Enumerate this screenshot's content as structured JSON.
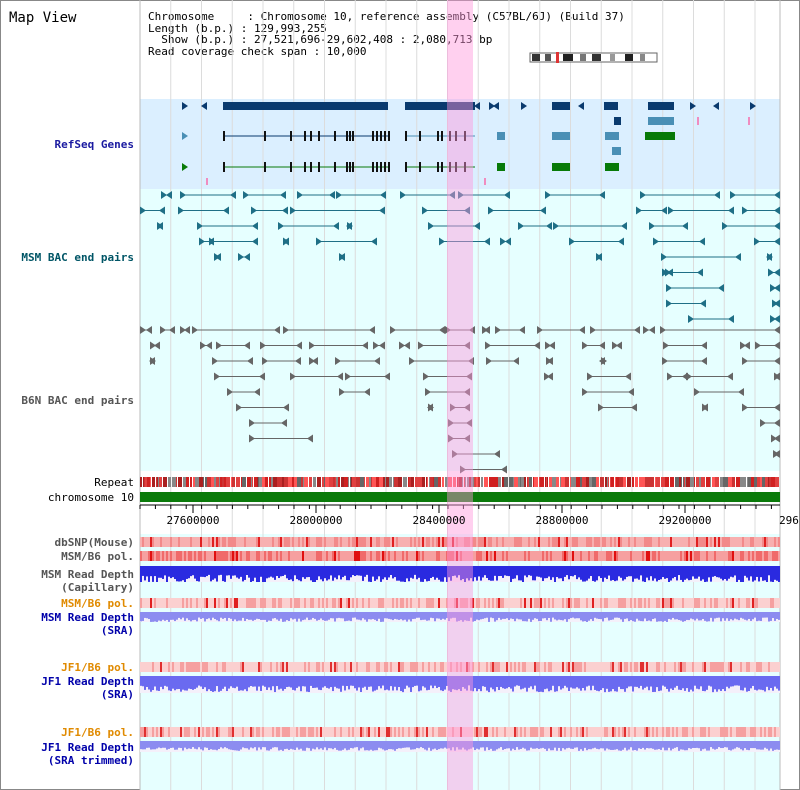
{
  "header": {
    "title": "Map View",
    "line1": "Chromosome     : Chromosome 10, reference assembly (C57BL/6J) (Build 37)",
    "line2": "Length (b.p.) : 129,993,255",
    "line3": "  Show (b.p.) : 27,521,696-29,602,408 : 2,080,713 bp",
    "line4": "Read coverage check span : 10,000"
  },
  "tracks": {
    "refseq": "RefSeq Genes",
    "msm_bac": "MSM BAC end pairs",
    "b6n_bac": "B6N BAC end pairs",
    "repeat": "Repeat",
    "chromosome": "chromosome 10",
    "dbsnp": "dbSNP(Mouse)",
    "msm_b6_pol": "MSM/B6 pol.",
    "msm_depth_cap_1": "MSM Read Depth",
    "msm_depth_cap_2": "(Capillary)",
    "msm_b6_pol2": "MSM/B6 pol.",
    "msm_depth_sra_1": "MSM Read Depth",
    "msm_depth_sra_2": "(SRA)",
    "jf1_b6_pol": "JF1/B6 pol.",
    "jf1_depth_sra_1": "JF1 Read Depth",
    "jf1_depth_sra_2": "(SRA)",
    "jf1_b6_pol2": "JF1/B6 pol.",
    "jf1_depth_trim_1": "JF1 Read Depth",
    "jf1_depth_trim_2": "(SRA trimmed)"
  },
  "axis": {
    "ticks": [
      "27600000",
      "28000000",
      "28400000",
      "28800000",
      "29200000",
      "296"
    ]
  },
  "colors": {
    "refseq_bg": "#dbefff",
    "track_bg": "#e6ffff",
    "highlight": "#ffc6ec",
    "navy": "#0a3a6e",
    "steel": "#4a8fb5",
    "green": "#087a08",
    "msm_label": "#005566",
    "b6n_label": "#555555",
    "orange": "#e08a00",
    "blue": "#0000aa"
  }
}
